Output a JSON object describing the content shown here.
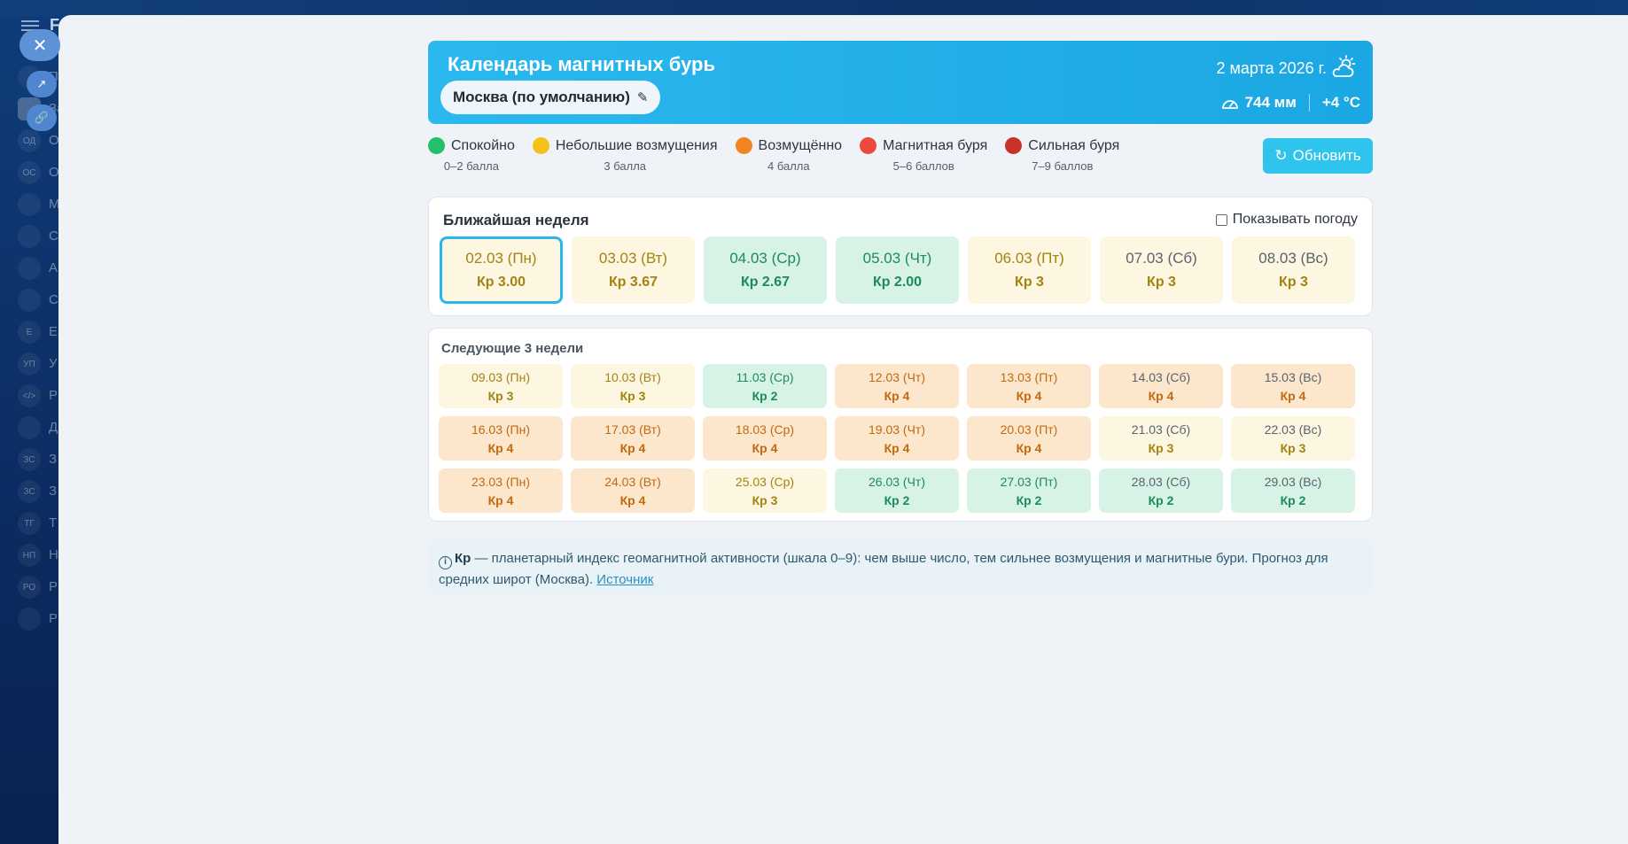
{
  "background": {
    "sidebar_letter": "F",
    "nav_items": [
      {
        "abbr": "",
        "label": "П"
      },
      {
        "abbr": "",
        "label": "За"
      },
      {
        "abbr": "ОД",
        "label": "О"
      },
      {
        "abbr": "ОС",
        "label": "О"
      },
      {
        "abbr": "",
        "label": "М"
      },
      {
        "abbr": "",
        "label": "С"
      },
      {
        "abbr": "",
        "label": "А"
      },
      {
        "abbr": "",
        "label": "С"
      },
      {
        "abbr": "Е",
        "label": "Е"
      },
      {
        "abbr": "УП",
        "label": "У"
      },
      {
        "abbr": "</>",
        "label": "Р"
      },
      {
        "abbr": "",
        "label": "Д"
      },
      {
        "abbr": "ЗС",
        "label": "З"
      },
      {
        "abbr": "ЗС",
        "label": "З"
      },
      {
        "abbr": "ТГ",
        "label": "Т"
      },
      {
        "abbr": "НП",
        "label": "Н"
      },
      {
        "abbr": "РО",
        "label": "Р"
      },
      {
        "abbr": "",
        "label": "Р"
      }
    ]
  },
  "header": {
    "title": "Календарь магнитных бурь",
    "city": "Москва (по умолчанию)",
    "date": "2 марта 2026 г.",
    "pressure": "744 мм",
    "temperature": "+4 °C"
  },
  "legend": [
    {
      "label": "Спокойно",
      "sub": "0–2 балла",
      "color": "#22c06a"
    },
    {
      "label": "Небольшие возмущения",
      "sub": "3 балла",
      "color": "#f2c21a"
    },
    {
      "label": "Возмущённо",
      "sub": "4 балла",
      "color": "#ef8420"
    },
    {
      "label": "Магнитная буря",
      "sub": "5–6 баллов",
      "color": "#ec4a3c"
    },
    {
      "label": "Сильная буря",
      "sub": "7–9 баллов",
      "color": "#c8322a"
    }
  ],
  "refresh_label": "Обновить",
  "week": {
    "title": "Ближайшая неделя",
    "show_weather_label": "Показывать погоду",
    "days": [
      {
        "date": "02.03 (Пн)",
        "kp": "Кр 3.00",
        "level": "minor",
        "selected": true
      },
      {
        "date": "03.03 (Вт)",
        "kp": "Кр 3.67",
        "level": "minor"
      },
      {
        "date": "04.03 (Ср)",
        "kp": "Кр 2.67",
        "level": "calm"
      },
      {
        "date": "05.03 (Чт)",
        "kp": "Кр 2.00",
        "level": "calm"
      },
      {
        "date": "06.03 (Пт)",
        "kp": "Кр 3",
        "level": "minor"
      },
      {
        "date": "07.03 (Сб)",
        "kp": "Кр 3",
        "level": "minor",
        "weekend": true
      },
      {
        "date": "08.03 (Вс)",
        "kp": "Кр 3",
        "level": "minor",
        "weekend": true
      }
    ]
  },
  "next_weeks": {
    "title": "Следующие 3 недели",
    "days": [
      {
        "date": "09.03 (Пн)",
        "kp": "Кр 3",
        "level": "minor"
      },
      {
        "date": "10.03 (Вт)",
        "kp": "Кр 3",
        "level": "minor"
      },
      {
        "date": "11.03 (Ср)",
        "kp": "Кр 2",
        "level": "calm"
      },
      {
        "date": "12.03 (Чт)",
        "kp": "Кр 4",
        "level": "dist"
      },
      {
        "date": "13.03 (Пт)",
        "kp": "Кр 4",
        "level": "dist"
      },
      {
        "date": "14.03 (Сб)",
        "kp": "Кр 4",
        "level": "dist",
        "weekend": true
      },
      {
        "date": "15.03 (Вс)",
        "kp": "Кр 4",
        "level": "dist",
        "weekend": true
      },
      {
        "date": "16.03 (Пн)",
        "kp": "Кр 4",
        "level": "dist"
      },
      {
        "date": "17.03 (Вт)",
        "kp": "Кр 4",
        "level": "dist"
      },
      {
        "date": "18.03 (Ср)",
        "kp": "Кр 4",
        "level": "dist"
      },
      {
        "date": "19.03 (Чт)",
        "kp": "Кр 4",
        "level": "dist"
      },
      {
        "date": "20.03 (Пт)",
        "kp": "Кр 4",
        "level": "dist"
      },
      {
        "date": "21.03 (Сб)",
        "kp": "Кр 3",
        "level": "minor",
        "weekend": true
      },
      {
        "date": "22.03 (Вс)",
        "kp": "Кр 3",
        "level": "minor",
        "weekend": true
      },
      {
        "date": "23.03 (Пн)",
        "kp": "Кр 4",
        "level": "dist"
      },
      {
        "date": "24.03 (Вт)",
        "kp": "Кр 4",
        "level": "dist"
      },
      {
        "date": "25.03 (Ср)",
        "kp": "Кр 3",
        "level": "minor"
      },
      {
        "date": "26.03 (Чт)",
        "kp": "Кр 2",
        "level": "calm"
      },
      {
        "date": "27.03 (Пт)",
        "kp": "Кр 2",
        "level": "calm"
      },
      {
        "date": "28.03 (Сб)",
        "kp": "Кр 2",
        "level": "calm",
        "weekend": true
      },
      {
        "date": "29.03 (Вс)",
        "kp": "Кр 2",
        "level": "calm",
        "weekend": true
      }
    ]
  },
  "note": {
    "term": "Кр",
    "text": " — планетарный индекс геомагнитной активности (шкала 0–9): чем выше число, тем сильнее возмущения и магнитные бури. Прогноз для средних широт (Москва). ",
    "link": "Источник"
  }
}
